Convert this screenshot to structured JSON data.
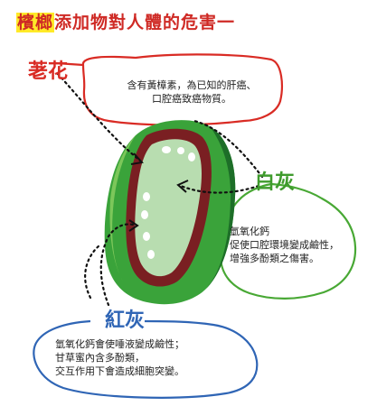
{
  "title": {
    "highlight": "檳榔",
    "text": "添加物對人體的危害一"
  },
  "sections": [
    {
      "label": "荖花",
      "description_lines": [
        "含有黃樟素，為已知的肝癌、",
        "口腔癌致癌物質。"
      ],
      "color": "#d92b24"
    },
    {
      "label": "白灰",
      "description_lines": [
        "氫氧化鈣",
        "促使口腔環境變成鹼性，",
        "增強多酚類之傷害。"
      ],
      "color": "#3f9b2d"
    },
    {
      "label": "紅灰",
      "description_lines": [
        "氫氧化鈣會使唾液變成鹼性；",
        "甘草蜜內含多酚類，",
        "交互作用下會造成細胞突變。"
      ],
      "color": "#2f65b5"
    }
  ],
  "colors": {
    "title": "#cf2a25",
    "highlight": "#ffea28",
    "mouth_green": "#3aa33a",
    "mouth_dark": "#1d6e28",
    "lip_red": "#7a1f22"
  }
}
